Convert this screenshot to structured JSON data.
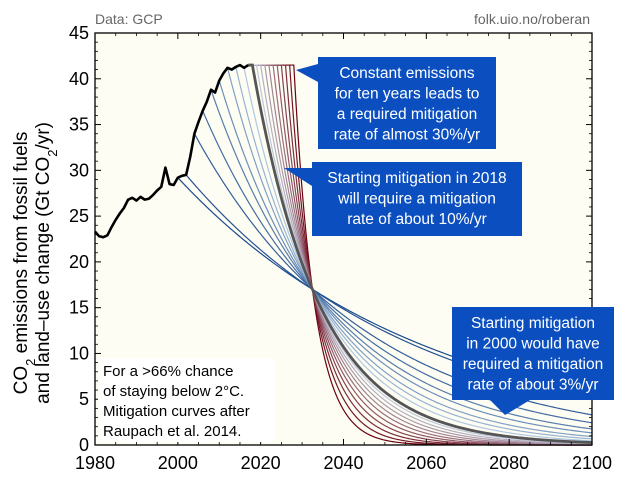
{
  "header": {
    "source": "Data: GCP",
    "credit": "folk.uio.no/roberan"
  },
  "chart_data": {
    "type": "line",
    "title": "",
    "xlabel": "",
    "ylabel_line1_base": "CO",
    "ylabel_line1_sub": "2",
    "ylabel_line1_rest": " emissions from fossil fuels",
    "ylabel_line2_prefix": "and land–use change (Gt CO",
    "ylabel_line2_sub": "2",
    "ylabel_line2_suffix": "/yr)",
    "xlim": [
      1980,
      2100
    ],
    "ylim": [
      0,
      45
    ],
    "xticks": [
      1980,
      2000,
      2020,
      2040,
      2060,
      2080,
      2100
    ],
    "yticks": [
      0,
      5,
      10,
      15,
      20,
      25,
      30,
      35,
      40,
      45
    ],
    "historical": {
      "name": "Historical emissions",
      "x": [
        1980,
        1981,
        1982,
        1983,
        1984,
        1985,
        1986,
        1987,
        1988,
        1989,
        1990,
        1991,
        1992,
        1993,
        1994,
        1995,
        1996,
        1997,
        1998,
        1999,
        2000,
        2001,
        2002,
        2003,
        2004,
        2005,
        2006,
        2007,
        2008,
        2009,
        2010,
        2011,
        2012,
        2013,
        2014,
        2015,
        2016,
        2017
      ],
      "y": [
        23.3,
        22.8,
        22.7,
        22.9,
        23.8,
        24.6,
        25.3,
        25.9,
        26.8,
        27.0,
        26.7,
        27.1,
        26.8,
        26.9,
        27.3,
        27.8,
        28.2,
        30.3,
        28.5,
        28.4,
        29.2,
        29.4,
        29.5,
        31.5,
        34.0,
        35.3,
        36.5,
        37.5,
        38.8,
        38.5,
        39.8,
        40.6,
        41.2,
        41.0,
        41.3,
        41.5,
        41.2,
        41.5
      ]
    },
    "mitigation_start_years": [
      2000,
      2002,
      2004,
      2006,
      2008,
      2010,
      2012,
      2014,
      2016,
      2018,
      2019,
      2020,
      2021,
      2022,
      2023,
      2024,
      2025,
      2026,
      2027,
      2028
    ],
    "emphasized_start_year": 2018,
    "convergence_point": {
      "year": 2032.5,
      "value": 17.0
    },
    "series_colors": {
      "early": "#1c4a8c",
      "light": "#c7dcef",
      "late": "#6b0010",
      "emphasis": "#555555"
    },
    "annotations": [
      {
        "id": "constant",
        "lines": [
          "Constant emissions",
          "for ten years leads to",
          "a required mitigation",
          "rate of almost 30%/yr"
        ]
      },
      {
        "id": "start-2018",
        "lines": [
          "Starting mitigation in 2018",
          "will require a mitigation",
          "rate of about 10%/yr"
        ]
      },
      {
        "id": "start-2000",
        "lines": [
          "Starting mitigation",
          "in 2000 would have",
          "required a mitigation",
          "rate of about 3%/yr"
        ]
      }
    ],
    "note": [
      "For a >66% chance",
      "of staying below 2°C.",
      "Mitigation curves after",
      "Raupach et al. 2014."
    ],
    "callout_color": "#0a4ebf",
    "plot_background": "#fdfdf3"
  }
}
